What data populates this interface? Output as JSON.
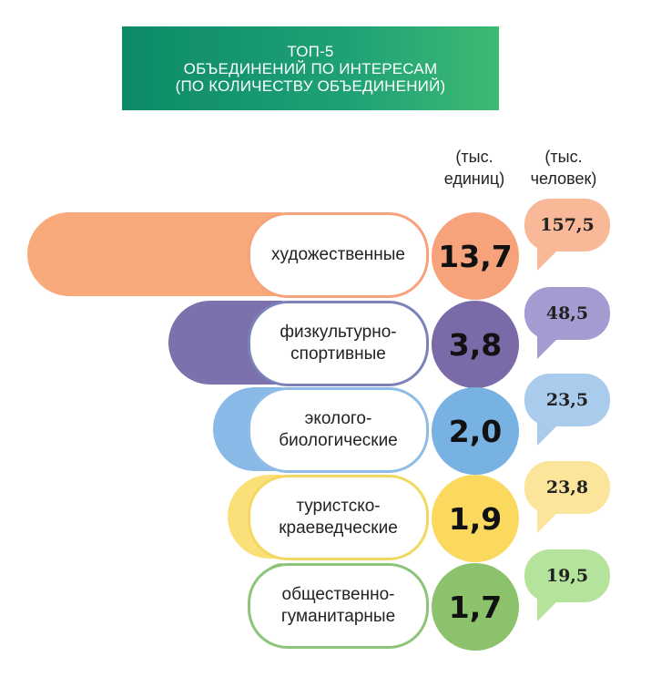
{
  "title": {
    "line1": "ТОП-5",
    "line2": "ОБЪЕДИНЕНИЙ ПО ИНТЕРЕСАМ",
    "line3": "(ПО КОЛИЧЕСТВУ ОБЪЕДИНЕНИЙ)"
  },
  "columns": {
    "units": [
      "(тыс.",
      "единиц)"
    ],
    "people": [
      "(тыс.",
      "человек)"
    ]
  },
  "chart_data": {
    "type": "bar",
    "title": "ТОП-5 ОБЪЕДИНЕНИЙ ПО ИНТЕРЕСАМ (ПО КОЛИЧЕСТВУ ОБЪЕДИНЕНИЙ)",
    "categories": [
      [
        "художественные"
      ],
      [
        "физкультурно-",
        "спортивные"
      ],
      [
        "эколого-",
        "биологические"
      ],
      [
        "туристско-",
        "краеведческие"
      ],
      [
        "общественно-",
        "гуманитарные"
      ]
    ],
    "series": [
      {
        "name": "(тыс. единиц)",
        "values": [
          13.7,
          3.8,
          2.0,
          1.9,
          1.7
        ],
        "labels": [
          "13,7",
          "3,8",
          "2,0",
          "1,9",
          "1,7"
        ]
      },
      {
        "name": "(тыс. человек)",
        "values": [
          157.5,
          48.5,
          23.5,
          23.8,
          19.5
        ],
        "labels": [
          "157,5",
          "48,5",
          "23,5",
          "23,8",
          "19,5"
        ]
      }
    ]
  },
  "colors": {
    "banner": "#13956f",
    "rows": [
      {
        "bar": "#f8aa7b",
        "border": "#f6a27a",
        "circle": "#f6a37c",
        "bubble": "#f9b898"
      },
      {
        "bar": "#7c70ad",
        "border": "#7a82b8",
        "circle": "#7a6aa8",
        "bubble": "#a59bd0"
      },
      {
        "bar": "#89b9e6",
        "border": "#8dbde6",
        "circle": "#77b2e3",
        "bubble": "#a9cbec"
      },
      {
        "bar": "#fbe07a",
        "border": "#f4d760",
        "circle": "#fbd95f",
        "bubble": "#fbe59b"
      },
      {
        "bar": "#8ccc72",
        "border": "#8cc47a",
        "circle": "#8cc26c",
        "bubble": "#b4e39b"
      }
    ]
  }
}
